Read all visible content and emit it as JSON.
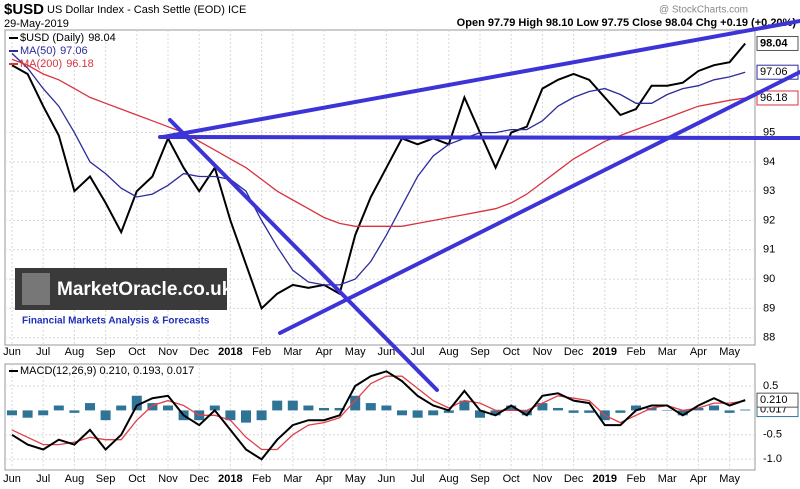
{
  "header": {
    "symbol": "$USD",
    "name": "US Dollar Index - Cash Settle (EOD) ICE",
    "date": "29-May-2019",
    "quote": "Open 97.79 High 98.10 Low 97.75 Close 98.04 Chg +0.19 (+0.20%)",
    "credit": "@ StockCharts.com"
  },
  "watermark": {
    "title": "MarketOracle.co.uk",
    "subtitle": "Financial Markets Analysis & Forecasts"
  },
  "chart_data": [
    {
      "type": "line",
      "categories": [
        "Jun",
        null,
        "Jul",
        null,
        "Aug",
        null,
        "Sep",
        null,
        "Oct",
        null,
        "Nov",
        null,
        "Dec",
        null,
        "2018",
        null,
        "Feb",
        null,
        "Mar",
        null,
        "Apr",
        null,
        "May",
        null,
        "Jun",
        null,
        "Jul",
        null,
        "Aug",
        null,
        "Sep",
        null,
        "Oct",
        null,
        "Nov",
        null,
        "Dec",
        null,
        "2019",
        null,
        "Feb",
        null,
        "Mar",
        null,
        "Apr",
        null,
        "May",
        null
      ],
      "ylim": [
        87.75,
        98.5
      ],
      "yticks": [
        88,
        89,
        90,
        91,
        92,
        93,
        94,
        95
      ],
      "grid": true,
      "series": [
        {
          "name": "$USD (Daily)",
          "color": "#000000",
          "values": [
            97.3,
            97.0,
            95.9,
            94.9,
            93.0,
            93.5,
            92.6,
            91.6,
            93.0,
            93.5,
            94.8,
            93.8,
            93.0,
            93.8,
            92.0,
            90.5,
            89.0,
            89.5,
            89.8,
            89.7,
            89.8,
            89.5,
            91.5,
            92.8,
            93.8,
            94.8,
            94.6,
            94.8,
            94.6,
            96.2,
            95.0,
            93.8,
            95.0,
            95.2,
            96.5,
            96.8,
            97.0,
            96.8,
            96.2,
            95.6,
            95.8,
            96.6,
            96.6,
            96.7,
            97.1,
            97.3,
            97.4,
            98.04
          ]
        },
        {
          "name": "MA(50)",
          "color": "#2b2b9c",
          "values": [
            97.7,
            97.2,
            96.5,
            95.9,
            95.0,
            94.0,
            93.6,
            93.1,
            92.8,
            92.9,
            93.2,
            93.6,
            93.5,
            93.5,
            93.4,
            93.0,
            92.0,
            91.1,
            90.3,
            89.9,
            89.8,
            89.8,
            90.0,
            90.6,
            91.5,
            92.5,
            93.5,
            94.2,
            94.6,
            94.8,
            95.0,
            95.0,
            95.1,
            95.1,
            95.4,
            95.9,
            96.2,
            96.4,
            96.5,
            96.3,
            96.0,
            96.0,
            96.3,
            96.5,
            96.6,
            96.8,
            96.9,
            97.06
          ]
        },
        {
          "name": "MA(200)",
          "color": "#d9333f",
          "values": [
            97.5,
            97.3,
            97.0,
            96.8,
            96.5,
            96.2,
            96.0,
            95.8,
            95.6,
            95.4,
            95.2,
            95.0,
            94.7,
            94.4,
            94.1,
            93.8,
            93.4,
            93.0,
            92.7,
            92.4,
            92.1,
            91.9,
            91.8,
            91.8,
            91.8,
            91.8,
            91.9,
            92.0,
            92.1,
            92.2,
            92.3,
            92.4,
            92.6,
            92.9,
            93.3,
            93.7,
            94.1,
            94.4,
            94.7,
            94.9,
            95.1,
            95.3,
            95.5,
            95.7,
            95.9,
            96.0,
            96.1,
            96.18
          ]
        }
      ]
    },
    {
      "type": "line",
      "legend": "MACD(12,26,9) 0.210, 0.193, 0.017",
      "categories": [
        "Jun",
        null,
        "Jul",
        null,
        "Aug",
        null,
        "Sep",
        null,
        "Oct",
        null,
        "Nov",
        null,
        "Dec",
        null,
        "2018",
        null,
        "Feb",
        null,
        "Mar",
        null,
        "Apr",
        null,
        "May",
        null,
        "Jun",
        null,
        "Jul",
        null,
        "Aug",
        null,
        "Sep",
        null,
        "Oct",
        null,
        "Nov",
        null,
        "Dec",
        null,
        "2019",
        null,
        "Feb",
        null,
        "Mar",
        null,
        "Apr",
        null,
        "May",
        null
      ],
      "ylim": [
        -1.22,
        0.95
      ],
      "yticks": [
        0.5,
        -0.5,
        {
          "value": -1,
          "label": "-1.0"
        }
      ],
      "grid": true,
      "series": [
        {
          "type": "bar",
          "color": "#2f7496",
          "values": [
            -0.1,
            -0.15,
            -0.1,
            0.1,
            -0.05,
            0.15,
            -0.2,
            0.1,
            0.3,
            0.15,
            0.1,
            -0.2,
            -0.2,
            0.1,
            -0.2,
            -0.25,
            -0.2,
            0.2,
            0.2,
            0.1,
            0.05,
            0.05,
            0.3,
            0.15,
            0.1,
            -0.1,
            -0.15,
            -0.1,
            -0.05,
            0.2,
            -0.15,
            -0.1,
            0.1,
            -0.1,
            0.15,
            0.05,
            -0.05,
            -0.05,
            -0.2,
            -0.05,
            0.1,
            0.05,
            0.0,
            -0.1,
            0.05,
            0.1,
            -0.05,
            0.017
          ],
          "value_labels": [
            null,
            null,
            null,
            null,
            null,
            null,
            null,
            null,
            null,
            null,
            null,
            null,
            null,
            null,
            null,
            null,
            null,
            null,
            null,
            null,
            null,
            null,
            null,
            null,
            null,
            null,
            null,
            null,
            null,
            null,
            null,
            null,
            null,
            null,
            null,
            null,
            null,
            null,
            null,
            null,
            null,
            null,
            null,
            null,
            null,
            null,
            null,
            "0.017"
          ]
        },
        {
          "type": "line",
          "color": "#e0404a",
          "values": [
            -0.4,
            -0.55,
            -0.7,
            -0.7,
            -0.65,
            -0.55,
            -0.6,
            -0.6,
            -0.2,
            0.1,
            0.2,
            0.1,
            -0.1,
            -0.1,
            -0.2,
            -0.55,
            -0.8,
            -0.8,
            -0.5,
            -0.3,
            -0.25,
            -0.15,
            0.2,
            0.55,
            0.7,
            0.7,
            0.45,
            0.2,
            0.05,
            0.2,
            0.15,
            0.0,
            0.0,
            0.0,
            0.15,
            0.3,
            0.25,
            0.2,
            -0.1,
            -0.25,
            -0.1,
            0.05,
            0.1,
            0.0,
            0.05,
            0.15,
            0.15,
            0.193
          ]
        },
        {
          "type": "line",
          "color": "#000000",
          "values": [
            -0.5,
            -0.7,
            -0.8,
            -0.6,
            -0.7,
            -0.4,
            -0.8,
            -0.5,
            0.1,
            0.25,
            0.3,
            -0.1,
            -0.3,
            0.0,
            -0.4,
            -0.8,
            -1.0,
            -0.6,
            -0.3,
            -0.2,
            -0.2,
            -0.1,
            0.5,
            0.7,
            0.8,
            0.6,
            0.3,
            0.1,
            0.0,
            0.4,
            0.0,
            -0.1,
            0.1,
            -0.1,
            0.3,
            0.35,
            0.2,
            0.15,
            -0.3,
            -0.3,
            0.0,
            0.1,
            0.1,
            -0.1,
            0.1,
            0.25,
            0.1,
            0.21
          ],
          "value_labels": [
            null,
            null,
            null,
            null,
            null,
            null,
            null,
            null,
            null,
            null,
            null,
            null,
            null,
            null,
            null,
            null,
            null,
            null,
            null,
            null,
            null,
            null,
            null,
            null,
            null,
            null,
            null,
            null,
            null,
            null,
            null,
            null,
            null,
            null,
            null,
            null,
            null,
            null,
            null,
            null,
            null,
            null,
            null,
            null,
            null,
            null,
            null,
            "0.210"
          ]
        }
      ]
    }
  ]
}
